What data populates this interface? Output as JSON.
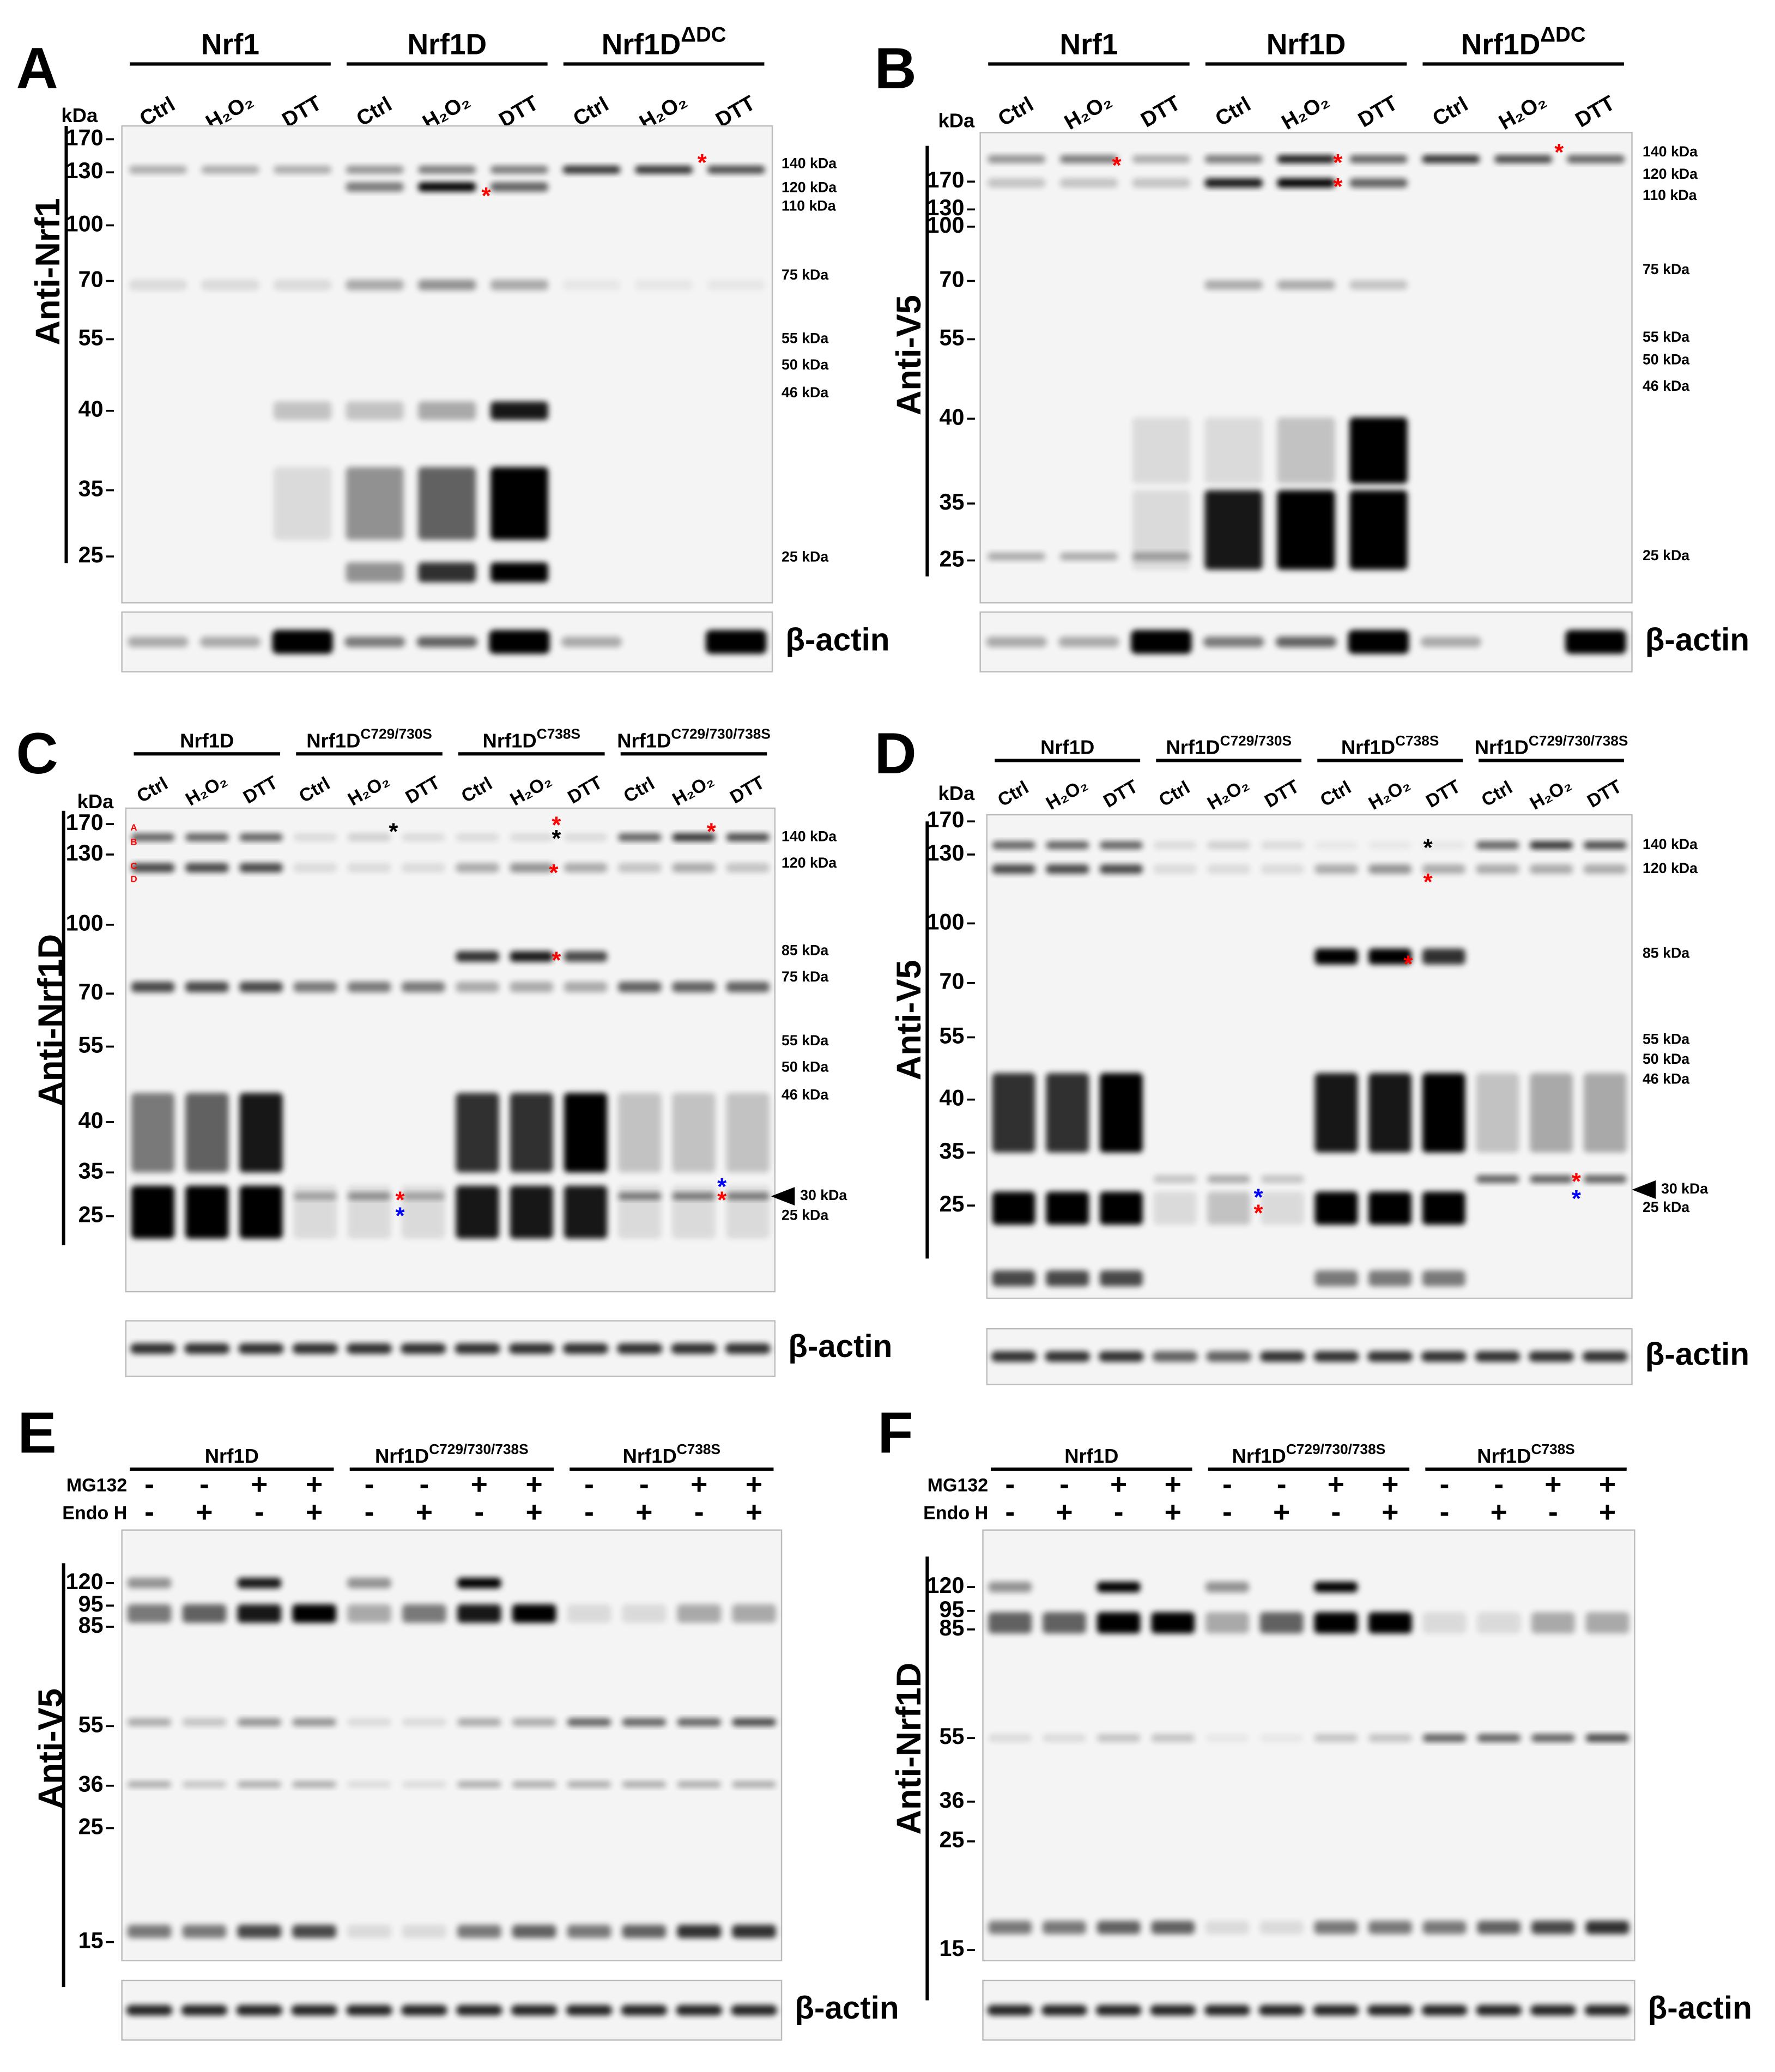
{
  "panels": [
    {
      "letter": "A",
      "antibody": "Anti-Nrf1",
      "kda": "kDa",
      "groups": [
        {
          "name": "Nrf1"
        },
        {
          "name": "Nrf1D"
        },
        {
          "name": "Nrf1D",
          "sup": "ΔDC"
        }
      ],
      "lanes": [
        "Ctrl",
        "H₂O₂",
        "DTT",
        "Ctrl",
        "H₂O₂",
        "DTT",
        "Ctrl",
        "H₂O₂",
        "DTT"
      ],
      "left_markers": [
        170,
        130,
        100,
        70,
        55,
        40,
        35,
        25
      ],
      "right_markers": [
        "140 kDa",
        "120 kDa",
        "110 kDa",
        "75 kDa",
        "55 kDa",
        "50 kDa",
        "46 kDa",
        "25 kDa"
      ],
      "loading": "β-actin",
      "annotations": [
        {
          "text": "*",
          "color": "red"
        },
        {
          "text": "*",
          "color": "red"
        }
      ]
    },
    {
      "letter": "B",
      "antibody": "Anti-V5",
      "kda": "kDa",
      "groups": [
        {
          "name": "Nrf1"
        },
        {
          "name": "Nrf1D"
        },
        {
          "name": "Nrf1D",
          "sup": "ΔDC"
        }
      ],
      "lanes": [
        "Ctrl",
        "H₂O₂",
        "DTT",
        "Ctrl",
        "H₂O₂",
        "DTT",
        "Ctrl",
        "H₂O₂",
        "DTT"
      ],
      "left_markers": [
        170,
        130,
        100,
        70,
        55,
        40,
        35,
        25
      ],
      "right_markers": [
        "140 kDa",
        "120 kDa",
        "110 kDa",
        "75 kDa",
        "55 kDa",
        "50 kDa",
        "46 kDa",
        "25 kDa"
      ],
      "loading": "β-actin",
      "annotations": [
        {
          "text": "*",
          "color": "red"
        },
        {
          "text": "*",
          "color": "red"
        },
        {
          "text": "*",
          "color": "red"
        },
        {
          "text": "*",
          "color": "red"
        }
      ]
    },
    {
      "letter": "C",
      "antibody": "Anti-Nrf1D",
      "kda": "kDa",
      "groups": [
        {
          "name": "Nrf1D"
        },
        {
          "name": "Nrf1D",
          "sup": "C729/730S"
        },
        {
          "name": "Nrf1D",
          "sup": "C738S"
        },
        {
          "name": "Nrf1D",
          "sup": "C729/730/738S"
        }
      ],
      "lanes": [
        "Ctrl",
        "H₂O₂",
        "DTT",
        "Ctrl",
        "H₂O₂",
        "DTT",
        "Ctrl",
        "H₂O₂",
        "DTT",
        "Ctrl",
        "H₂O₂",
        "DTT"
      ],
      "left_markers": [
        170,
        130,
        100,
        70,
        55,
        40,
        35,
        25
      ],
      "right_markers": [
        "140 kDa",
        "120 kDa",
        "85 kDa",
        "75 kDa",
        "55 kDa",
        "50 kDa",
        "46 kDa",
        "30 kDa",
        "25 kDa"
      ],
      "loading": "β-actin",
      "annotations": [
        {
          "text": "A",
          "color": "red"
        },
        {
          "text": "B",
          "color": "red"
        },
        {
          "text": "C",
          "color": "red"
        },
        {
          "text": "D",
          "color": "red"
        },
        {
          "text": "*",
          "color": "black"
        },
        {
          "text": "*",
          "color": "red"
        },
        {
          "text": "*",
          "color": "black"
        },
        {
          "text": "*",
          "color": "red"
        },
        {
          "text": "*",
          "color": "red"
        },
        {
          "text": "*",
          "color": "red"
        },
        {
          "text": "*",
          "color": "red"
        },
        {
          "text": "*",
          "color": "blue"
        },
        {
          "text": "*",
          "color": "blue"
        },
        {
          "text": "*",
          "color": "red"
        }
      ]
    },
    {
      "letter": "D",
      "antibody": "Anti-V5",
      "kda": "kDa",
      "groups": [
        {
          "name": "Nrf1D"
        },
        {
          "name": "Nrf1D",
          "sup": "C729/730S"
        },
        {
          "name": "Nrf1D",
          "sup": "C738S"
        },
        {
          "name": "Nrf1D",
          "sup": "C729/730/738S"
        }
      ],
      "lanes": [
        "Ctrl",
        "H₂O₂",
        "DTT",
        "Ctrl",
        "H₂O₂",
        "DTT",
        "Ctrl",
        "H₂O₂",
        "DTT",
        "Ctrl",
        "H₂O₂",
        "DTT"
      ],
      "left_markers": [
        170,
        130,
        100,
        70,
        55,
        40,
        35,
        25
      ],
      "right_markers": [
        "140 kDa",
        "120 kDa",
        "85 kDa",
        "55 kDa",
        "50 kDa",
        "46 kDa",
        "30 kDa",
        "25 kDa"
      ],
      "loading": "β-actin",
      "annotations": [
        {
          "text": "*",
          "color": "black"
        },
        {
          "text": "*",
          "color": "red"
        },
        {
          "text": "*",
          "color": "red"
        },
        {
          "text": "*",
          "color": "blue"
        },
        {
          "text": "*",
          "color": "red"
        },
        {
          "text": "*",
          "color": "red"
        },
        {
          "text": "*",
          "color": "blue"
        }
      ]
    },
    {
      "letter": "E",
      "antibody": "Anti-V5",
      "groups": [
        {
          "name": "Nrf1D"
        },
        {
          "name": "Nrf1D",
          "sup": "C729/730/738S"
        },
        {
          "name": "Nrf1D",
          "sup": "C738S"
        }
      ],
      "rows": [
        {
          "label": "MG132",
          "signs": [
            "-",
            "-",
            "+",
            "+",
            "-",
            "-",
            "+",
            "+",
            "-",
            "-",
            "+",
            "+"
          ]
        },
        {
          "label": "Endo H",
          "signs": [
            "-",
            "+",
            "-",
            "+",
            "-",
            "+",
            "-",
            "+",
            "-",
            "+",
            "-",
            "+"
          ]
        }
      ],
      "left_markers": [
        120,
        95,
        85,
        55,
        36,
        25,
        15
      ],
      "loading": "β-actin"
    },
    {
      "letter": "F",
      "antibody": "Anti-Nrf1D",
      "groups": [
        {
          "name": "Nrf1D"
        },
        {
          "name": "Nrf1D",
          "sup": "C729/730/738S"
        },
        {
          "name": "Nrf1D",
          "sup": "C738S"
        }
      ],
      "rows": [
        {
          "label": "MG132",
          "signs": [
            "-",
            "-",
            "+",
            "+",
            "-",
            "-",
            "+",
            "+",
            "-",
            "-",
            "+",
            "+"
          ]
        },
        {
          "label": "Endo H",
          "signs": [
            "-",
            "+",
            "-",
            "+",
            "-",
            "+",
            "-",
            "+",
            "-",
            "+",
            "-",
            "+"
          ]
        }
      ],
      "left_markers": [
        120,
        95,
        85,
        55,
        36,
        25,
        15
      ],
      "loading": "β-actin"
    }
  ]
}
